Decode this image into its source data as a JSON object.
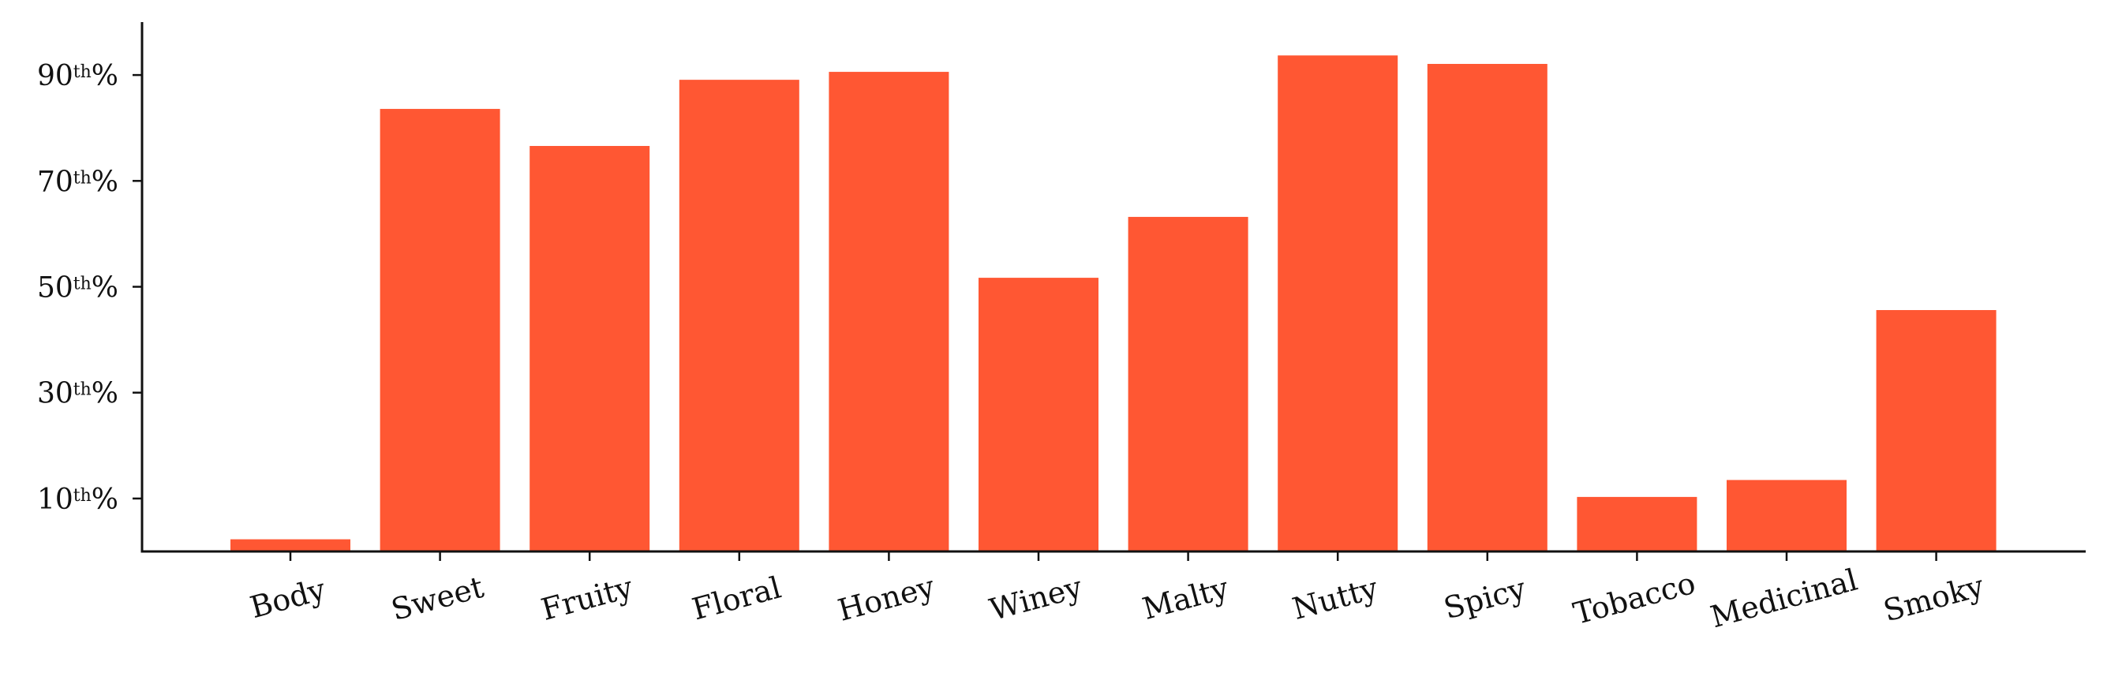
{
  "chart_data": {
    "type": "bar",
    "title": "",
    "xlabel": "",
    "ylabel": "",
    "categories": [
      "Body",
      "Sweet",
      "Fruity",
      "Floral",
      "Honey",
      "Winey",
      "Malty",
      "Nutty",
      "Spicy",
      "Tobacco",
      "Medicinal",
      "Smoky"
    ],
    "values": [
      2.3,
      83.6,
      76.6,
      89.1,
      90.6,
      51.7,
      63.2,
      93.7,
      92.1,
      10.3,
      13.5,
      45.6
    ],
    "y_ticks": [
      {
        "value": 10,
        "num": "10",
        "sup": "th",
        "suffix": "%"
      },
      {
        "value": 30,
        "num": "30",
        "sup": "th",
        "suffix": "%"
      },
      {
        "value": 50,
        "num": "50",
        "sup": "th",
        "suffix": "%"
      },
      {
        "value": 70,
        "num": "70",
        "sup": "th",
        "suffix": "%"
      },
      {
        "value": 90,
        "num": "90",
        "sup": "th",
        "suffix": "%"
      }
    ],
    "ylim": [
      0,
      100
    ],
    "grid": false,
    "bar_color": "#ff5733"
  }
}
